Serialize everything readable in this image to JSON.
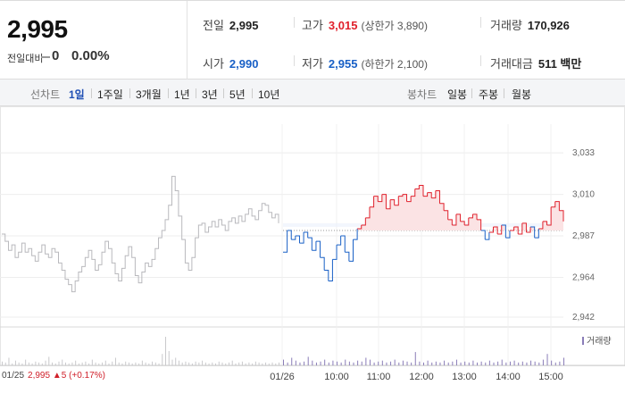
{
  "price": {
    "current": "2,995",
    "change_label": "전일대비",
    "change_value": "0",
    "change_pct": "0.00%"
  },
  "stats": {
    "prev_close_label": "전일",
    "prev_close": "2,995",
    "high_label": "고가",
    "high": "3,015",
    "upper_limit": "(상한가 3,890)",
    "volume_label": "거래량",
    "volume": "170,926",
    "open_label": "시가",
    "open": "2,990",
    "low_label": "저가",
    "low": "2,955",
    "lower_limit": "(하한가 2,100)",
    "trade_value_label": "거래대금",
    "trade_value": "511 백만"
  },
  "toolbar": {
    "line_label": "선차트",
    "periods": [
      "1일",
      "1주일",
      "3개월",
      "1년",
      "3년",
      "5년",
      "10년"
    ],
    "active_period": "1일",
    "candle_label": "봉차트",
    "candles": [
      "일봉",
      "주봉",
      "월봉"
    ]
  },
  "chart_data": {
    "type": "line",
    "title": "",
    "reference_price": 2990,
    "ylim": [
      2940,
      3040
    ],
    "y_ticks": [
      "3,033",
      "3,010",
      "2,987",
      "2,964",
      "2,942"
    ],
    "y_tick_values": [
      3033,
      3010,
      2987,
      2964,
      2942
    ],
    "x_ticks": [
      "01/25",
      "01/26",
      "10:00",
      "11:00",
      "12:00",
      "13:00",
      "14:00",
      "15:00"
    ],
    "previous_day": {
      "name": "01/25",
      "values": [
        2988,
        2984,
        2979,
        2982,
        2975,
        2978,
        2983,
        2978,
        2980,
        2976,
        2973,
        2978,
        2982,
        2977,
        2975,
        2980,
        2978,
        2972,
        2968,
        2963,
        2960,
        2956,
        2962,
        2967,
        2970,
        2975,
        2979,
        2974,
        2968,
        2971,
        2978,
        2984,
        2980,
        2972,
        2966,
        2962,
        2969,
        2976,
        2981,
        2975,
        2965,
        2961,
        2967,
        2972,
        2970,
        2974,
        2980,
        2986,
        2990,
        2996,
        3004,
        3020,
        3012,
        2998,
        2985,
        2972,
        2968,
        2975,
        2986,
        2993,
        2994,
        2989,
        2992,
        2995,
        2992,
        2996,
        2993,
        2990,
        2995,
        2997,
        2994,
        2998,
        2995,
        2999,
        3002,
        2998,
        2996,
        3001,
        3005,
        3004,
        3000,
        2997,
        2999,
        2994
      ]
    },
    "today": {
      "name": "01/26",
      "values": [
        2978,
        2990,
        2985,
        2987,
        2983,
        2989,
        2986,
        2979,
        2984,
        2975,
        2968,
        2962,
        2974,
        2982,
        2987,
        2978,
        2973,
        2985,
        2991,
        2993,
        2997,
        3003,
        3009,
        3006,
        3010,
        3002,
        3007,
        3004,
        3009,
        3010,
        3006,
        3009,
        3013,
        3015,
        3009,
        3011,
        3008,
        3012,
        3005,
        3001,
        2996,
        2993,
        2999,
        2995,
        2993,
        2997,
        2999,
        2996,
        2990,
        2985,
        2989,
        2992,
        2988,
        2993,
        2986,
        2990,
        2992,
        2988,
        2994,
        2989,
        2992,
        2986,
        2991,
        2995,
        2993,
        3003,
        3006,
        3001,
        2995
      ]
    },
    "volume": {
      "name": "거래량",
      "previous_day": [
        4,
        3,
        8,
        2,
        5,
        3,
        2,
        6,
        3,
        2,
        4,
        3,
        2,
        5,
        9,
        3,
        2,
        4,
        6,
        3,
        2,
        3,
        5,
        2,
        3,
        4,
        2,
        6,
        3,
        2,
        3,
        5,
        2,
        4,
        8,
        3,
        2,
        4,
        3,
        2,
        3,
        2,
        5,
        3,
        2,
        4,
        3,
        2,
        12,
        30,
        15,
        6,
        8,
        5,
        3,
        4,
        3,
        2,
        4,
        3,
        5,
        3,
        2,
        3,
        2,
        4,
        3,
        2,
        3,
        5,
        2,
        3,
        4,
        2,
        3,
        2,
        4,
        3,
        2,
        3,
        2,
        3,
        2,
        3
      ],
      "today": [
        6,
        3,
        8,
        5,
        3,
        4,
        9,
        5,
        3,
        4,
        6,
        3,
        5,
        4,
        3,
        6,
        4,
        3,
        5,
        4,
        8,
        6,
        3,
        4,
        5,
        3,
        4,
        6,
        3,
        5,
        4,
        3,
        14,
        4,
        3,
        5,
        3,
        4,
        3,
        5,
        3,
        4,
        6,
        3,
        4,
        3,
        5,
        3,
        4,
        3,
        5,
        3,
        4,
        6,
        3,
        4,
        5,
        3,
        4,
        3,
        5,
        4,
        3,
        6,
        12,
        5,
        3,
        4,
        8
      ]
    },
    "colors": {
      "up": "#e0212c",
      "down": "#1960c6",
      "previous": "#b9b9bd",
      "volume_legend": "#8a7db8"
    },
    "legend": "bottom-right"
  },
  "footer": {
    "date": "01/25",
    "text": "2,995 ▲5 (+0.17%)"
  }
}
